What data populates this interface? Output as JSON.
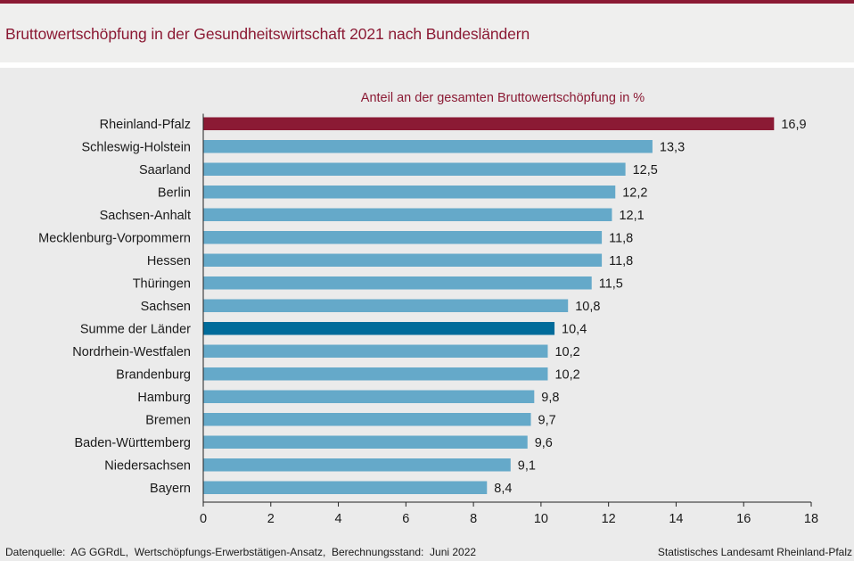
{
  "title": "Bruttowertschöpfung in der Gesundheitswirtschaft 2021 nach Bundesländern",
  "footer": {
    "source": "Datenquelle:  AG GGRdL,  Wertschöpfungs-Erwerbstätigen-Ansatz,  Berechnungsstand:  Juni 2022",
    "publisher": "Statistisches Landesamt Rheinland-Pfalz"
  },
  "colors": {
    "highlight": "#8b1a34",
    "total": "#006b9a",
    "default": "#65a9c9"
  },
  "chart_data": {
    "type": "bar",
    "orientation": "horizontal",
    "title": "Anteil an der gesamten Bruttowertschöpfung  in %",
    "xlim": [
      0,
      18
    ],
    "xticks": [
      "0",
      "2",
      "4",
      "6",
      "8",
      "10",
      "12",
      "14",
      "16",
      "18"
    ],
    "categories": [
      "Rheinland-Pfalz",
      "Schleswig-Holstein",
      "Saarland",
      "Berlin",
      "Sachsen-Anhalt",
      "Mecklenburg-Vorpommern",
      "Hessen",
      "Thüringen",
      "Sachsen",
      "Summe der Länder",
      "Nordrhein-Westfalen",
      "Brandenburg",
      "Hamburg",
      "Bremen",
      "Baden-Württemberg",
      "Niedersachsen",
      "Bayern"
    ],
    "values": [
      16.9,
      13.3,
      12.5,
      12.2,
      12.1,
      11.8,
      11.8,
      11.5,
      10.8,
      10.4,
      10.2,
      10.2,
      9.8,
      9.7,
      9.6,
      9.1,
      8.4
    ],
    "labels": [
      "16,9",
      "13,3",
      "12,5",
      "12,2",
      "12,1",
      "11,8",
      "11,8",
      "11,5",
      "10,8",
      "10,4",
      "10,2",
      "10,2",
      "9,8",
      "9,7",
      "9,6",
      "9,1",
      "8,4"
    ],
    "highlight": [
      "highlight",
      "default",
      "default",
      "default",
      "default",
      "default",
      "default",
      "default",
      "default",
      "total",
      "default",
      "default",
      "default",
      "default",
      "default",
      "default",
      "default"
    ]
  }
}
